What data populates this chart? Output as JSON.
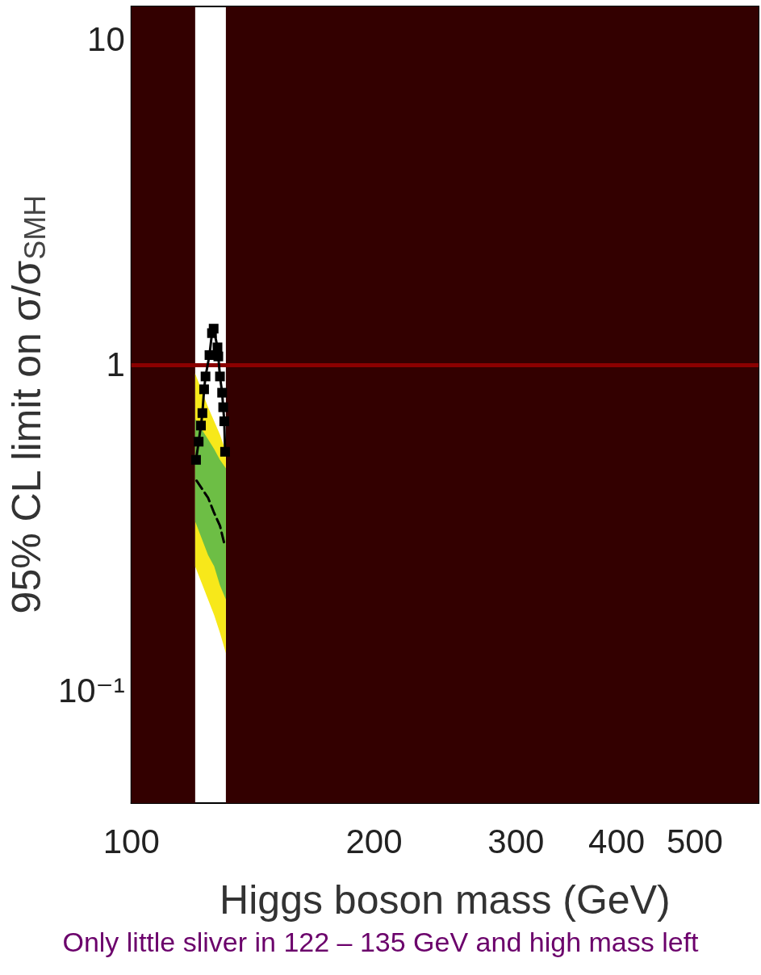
{
  "chart_data": {
    "type": "line",
    "xlabel": "Higgs boson mass (GeV)",
    "ylabel": "95% CL limit on σ/σ$_{SMH}$",
    "annotations": [
      "Only little sliver in 122 – 135 GeV and high mass left"
    ],
    "log": "xy",
    "xlim": [
      100,
      600
    ],
    "xticks": [
      100,
      200,
      300,
      400,
      500
    ],
    "ylim": [
      0.045,
      12.6
    ],
    "yticks": [
      {
        "value": 0.1,
        "label": "10⁻¹"
      },
      1,
      10
    ],
    "grid": false,
    "series": [
      {
        "color": "#f7e81a",
        "x": [
          120,
          124.5,
          126.7,
          128.8,
          131
        ],
        "values": [
          null,
          null,
          null,
          null,
          null
        ],
        "lower": [
          0.24,
          0.19,
          0.17,
          0.15,
          0.13
        ],
        "upper": [
          0.94,
          0.74,
          0.67,
          0.61,
          0.54
        ]
      },
      {
        "color": "#6dbe45",
        "x": [
          120,
          124.5,
          126.7,
          128.8,
          131
        ],
        "values": [
          null,
          null,
          null,
          null,
          null
        ],
        "lower": [
          0.33,
          0.26,
          0.24,
          0.21,
          0.19
        ],
        "upper": [
          0.68,
          0.59,
          0.55,
          0.51,
          0.48
        ]
      },
      {
        "color": "#000000",
        "line_style": "dashed",
        "marker": "none",
        "x": [
          120.5,
          124.5,
          126.7,
          128.8,
          130.5
        ],
        "values": [
          0.44,
          0.39,
          0.35,
          0.32,
          0.28
        ]
      },
      {
        "color": "#000000",
        "line_style": "solid",
        "marker": "square",
        "x": [
          120.3,
          121.2,
          122,
          122.5,
          123.1,
          123.6,
          125,
          125.9,
          126.5,
          127.9,
          128.2,
          128.8,
          129.6,
          130,
          130.4,
          130.7
        ],
        "values": [
          0.51,
          0.58,
          0.65,
          0.71,
          0.84,
          0.92,
          1.07,
          1.25,
          1.29,
          1.13,
          1.06,
          0.92,
          0.82,
          0.74,
          0.67,
          0.54
        ]
      }
    ],
    "ref_lines": [
      {
        "axis": "y",
        "value": 1,
        "color": "#8b0000"
      }
    ],
    "bands": [
      {
        "axis": "x",
        "from": 100,
        "to": 120,
        "color": "#330000"
      },
      {
        "axis": "x",
        "from": 131,
        "to": 600,
        "color": "#330000"
      }
    ]
  }
}
